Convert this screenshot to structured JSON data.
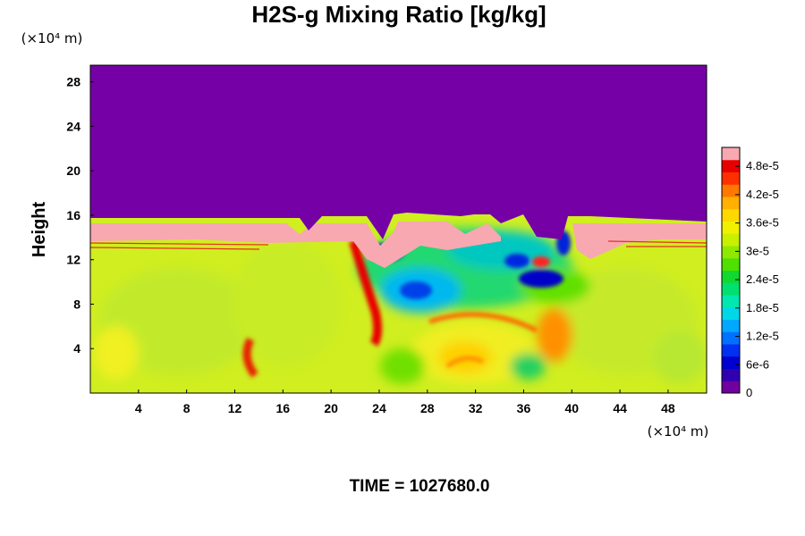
{
  "chart_data": {
    "type": "heatmap",
    "title": "H2S-g Mixing Ratio [kg/kg]",
    "ylabel": "Height",
    "xlabel": "",
    "x_unit": "(×10⁴ m)",
    "y_unit": "(×10⁴ m)",
    "xlim": [
      0,
      51.2
    ],
    "ylim": [
      0,
      29.5
    ],
    "x_ticks": [
      4,
      8,
      12,
      16,
      20,
      24,
      28,
      32,
      36,
      40,
      44,
      48
    ],
    "y_ticks": [
      4,
      8,
      12,
      16,
      20,
      24,
      28
    ],
    "colorbar": {
      "min": 0,
      "max": 5.2e-05,
      "tick_values": [
        0,
        6e-06,
        1.2e-05,
        1.8e-05,
        2.4e-05,
        3e-05,
        3.6e-05,
        4.2e-05,
        4.8e-05
      ],
      "tick_labels": [
        "0",
        "6e-6",
        "1.2e-5",
        "1.8e-5",
        "2.4e-5",
        "3e-5",
        "3.6e-5",
        "4.2e-5",
        "4.8e-5"
      ],
      "colors": [
        "#7000a0",
        "#3000b0",
        "#0000d0",
        "#0030f0",
        "#0070ff",
        "#00a8ff",
        "#00d8e8",
        "#00e8b0",
        "#00e070",
        "#10d830",
        "#50e000",
        "#90e800",
        "#c8f000",
        "#f0f000",
        "#ffd800",
        "#ffb000",
        "#ff7800",
        "#ff3000",
        "#e80000",
        "#f8a8b0"
      ]
    },
    "time_label": "TIME = 1027680.0",
    "colors": {
      "upper_region": "#7500a6",
      "background_field": "#d0ee20"
    }
  }
}
